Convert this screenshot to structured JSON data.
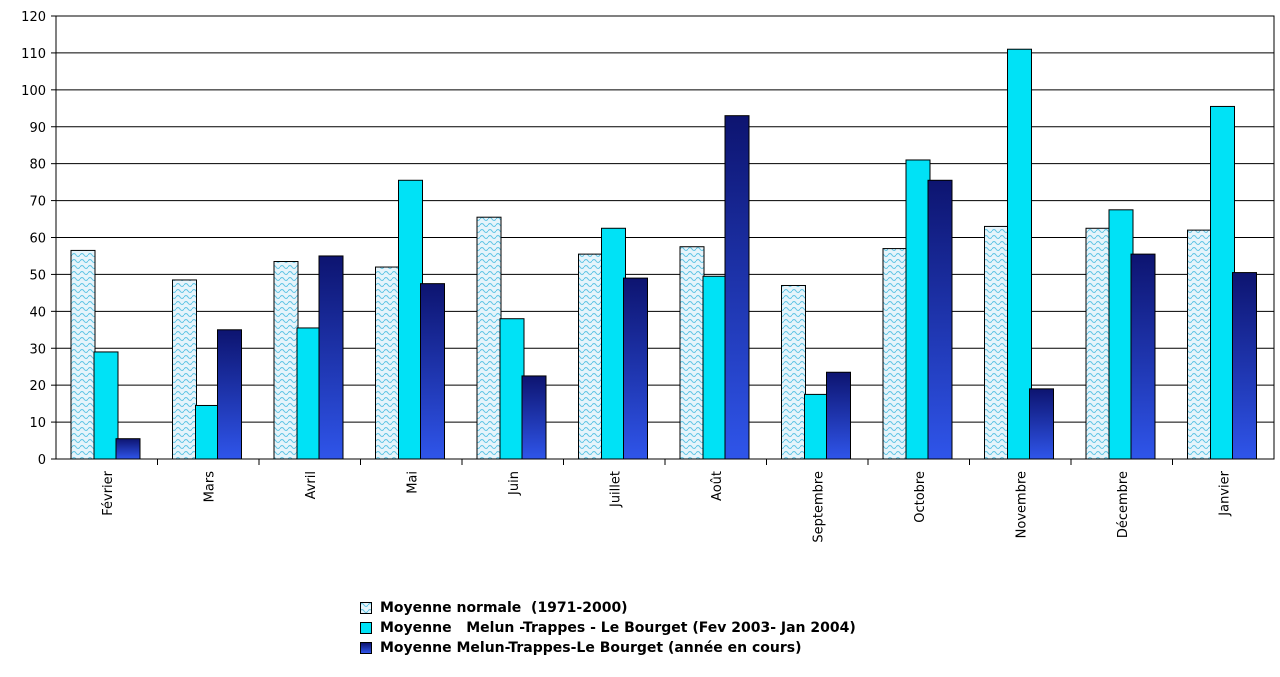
{
  "chart_data": {
    "type": "bar",
    "categories": [
      "Février",
      "Mars",
      "Avril",
      "Mai",
      "Juin",
      "Juillet",
      "Août",
      "Septembre",
      "Octobre",
      "Novembre",
      "Décembre",
      "Janvier"
    ],
    "series": [
      {
        "name": "Moyenne normale  (1971-2000)",
        "values": [
          56.5,
          48.5,
          53.5,
          52,
          65.5,
          55.5,
          57.5,
          47,
          57,
          63,
          62.5,
          62
        ]
      },
      {
        "name": "Moyenne   Melun -Trappes - Le Bourget (Fev 2003- Jan 2004)",
        "values": [
          29,
          14.5,
          35.5,
          75.5,
          38,
          62.5,
          49.5,
          17.5,
          81,
          111,
          67.5,
          95.5
        ]
      },
      {
        "name": "Moyenne Melun-Trappes-Le Bourget (année en cours)",
        "values": [
          5.5,
          35,
          55,
          47.5,
          22.5,
          49,
          93,
          23.5,
          75.5,
          19,
          55.5,
          50.5
        ]
      }
    ],
    "ylim": [
      0,
      120
    ],
    "yticks": [
      0,
      10,
      20,
      30,
      40,
      50,
      60,
      70,
      80,
      90,
      100,
      110,
      120
    ],
    "grid": true,
    "legend_position": "bottom",
    "colors": {
      "series1": "#e6f4fb",
      "series1_pattern": "#5ec4e4",
      "series2": "#00e2f6",
      "series3_top": "#0d1470",
      "series3_bottom": "#2f55ea"
    }
  }
}
